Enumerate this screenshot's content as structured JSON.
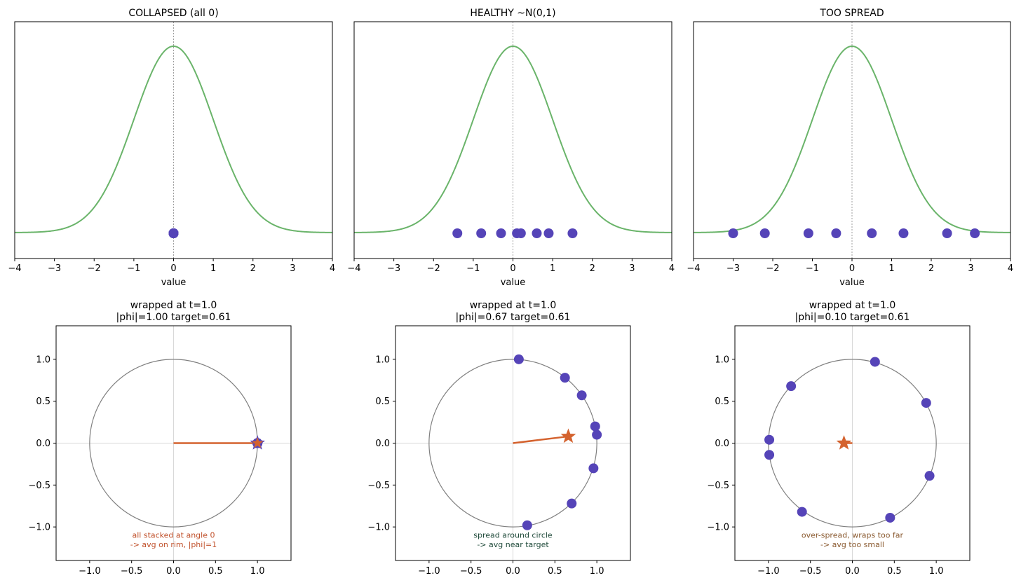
{
  "colors": {
    "curve": "#6ab46a",
    "point": "#5544b8",
    "arrow": "#d4622e",
    "circle": "#7f7f7f",
    "note_collapsed": "#c0502a",
    "note_healthy": "#1f4a3a",
    "note_spread": "#8a5a30"
  },
  "chart_data": [
    {
      "type": "line",
      "title": "COLLAPSED (all 0)",
      "xlabel": "value",
      "xlim": [
        -4,
        4
      ],
      "xticks": [
        "−4",
        "−3",
        "−2",
        "−1",
        "0",
        "1",
        "2",
        "3",
        "4"
      ],
      "curve": "standard normal density",
      "points": [
        0,
        0,
        0,
        0,
        0,
        0,
        0,
        0
      ]
    },
    {
      "type": "line",
      "title": "HEALTHY ~N(0,1)",
      "xlabel": "value",
      "xlim": [
        -4,
        4
      ],
      "xticks": [
        "−4",
        "−3",
        "−2",
        "−1",
        "0",
        "1",
        "2",
        "3",
        "4"
      ],
      "curve": "standard normal density",
      "points": [
        -1.4,
        -0.8,
        -0.3,
        0.1,
        0.2,
        0.6,
        0.9,
        1.5
      ]
    },
    {
      "type": "line",
      "title": "TOO SPREAD",
      "xlabel": "value",
      "xlim": [
        -4,
        4
      ],
      "xticks": [
        "−4",
        "−3",
        "−2",
        "−1",
        "0",
        "1",
        "2",
        "3",
        "4"
      ],
      "curve": "standard normal density",
      "points": [
        -3.0,
        -2.2,
        -1.1,
        -0.4,
        0.5,
        1.3,
        2.4,
        3.1
      ]
    },
    {
      "type": "scatter",
      "title_line1": "wrapped at t=1.0",
      "title_line2": "|phi|=1.00  target=0.61",
      "xlim": [
        -1.4,
        1.4
      ],
      "ylim": [
        -1.4,
        1.4
      ],
      "xticks": [
        "−1.0",
        "−0.5",
        "0.0",
        "0.5",
        "1.0"
      ],
      "yticks": [
        "1.0",
        "0.5",
        "0.0",
        "−0.5",
        "−1.0"
      ],
      "points": [
        [
          1,
          0
        ],
        [
          1,
          0
        ],
        [
          1,
          0
        ],
        [
          1,
          0
        ],
        [
          1,
          0
        ],
        [
          1,
          0
        ],
        [
          1,
          0
        ],
        [
          1,
          0
        ]
      ],
      "mean": [
        1.0,
        0.0
      ],
      "note_line1": "all stacked at angle 0",
      "note_line2": "-> avg on rim, |phi|=1"
    },
    {
      "type": "scatter",
      "title_line1": "wrapped at t=1.0",
      "title_line2": "|phi|=0.67  target=0.61",
      "xlim": [
        -1.4,
        1.4
      ],
      "ylim": [
        -1.4,
        1.4
      ],
      "xticks": [
        "−1.0",
        "−0.5",
        "0.0",
        "0.5",
        "1.0"
      ],
      "yticks": [
        "1.0",
        "0.5",
        "0.0",
        "−0.5",
        "−1.0"
      ],
      "points": [
        [
          0.07,
          1.0
        ],
        [
          0.62,
          0.78
        ],
        [
          0.82,
          0.57
        ],
        [
          0.98,
          0.2
        ],
        [
          1.0,
          0.1
        ],
        [
          0.96,
          -0.3
        ],
        [
          0.7,
          -0.72
        ],
        [
          0.17,
          -0.98
        ]
      ],
      "mean": [
        0.66,
        0.08
      ],
      "note_line1": "spread around circle",
      "note_line2": "-> avg near target"
    },
    {
      "type": "scatter",
      "title_line1": "wrapped at t=1.0",
      "title_line2": "|phi|=0.10  target=0.61",
      "xlim": [
        -1.4,
        1.4
      ],
      "ylim": [
        -1.4,
        1.4
      ],
      "xticks": [
        "−1.0",
        "−0.5",
        "0.0",
        "0.5",
        "1.0"
      ],
      "yticks": [
        "1.0",
        "0.5",
        "0.0",
        "−0.5",
        "−1.0"
      ],
      "points": [
        [
          0.27,
          0.97
        ],
        [
          -0.73,
          0.68
        ],
        [
          0.88,
          0.48
        ],
        [
          -0.99,
          0.04
        ],
        [
          -0.99,
          -0.14
        ],
        [
          0.92,
          -0.39
        ],
        [
          -0.6,
          -0.82
        ],
        [
          0.45,
          -0.89
        ]
      ],
      "mean": [
        -0.1,
        0.0
      ],
      "note_line1": "over-spread, wraps too far",
      "note_line2": "-> avg too small"
    }
  ]
}
